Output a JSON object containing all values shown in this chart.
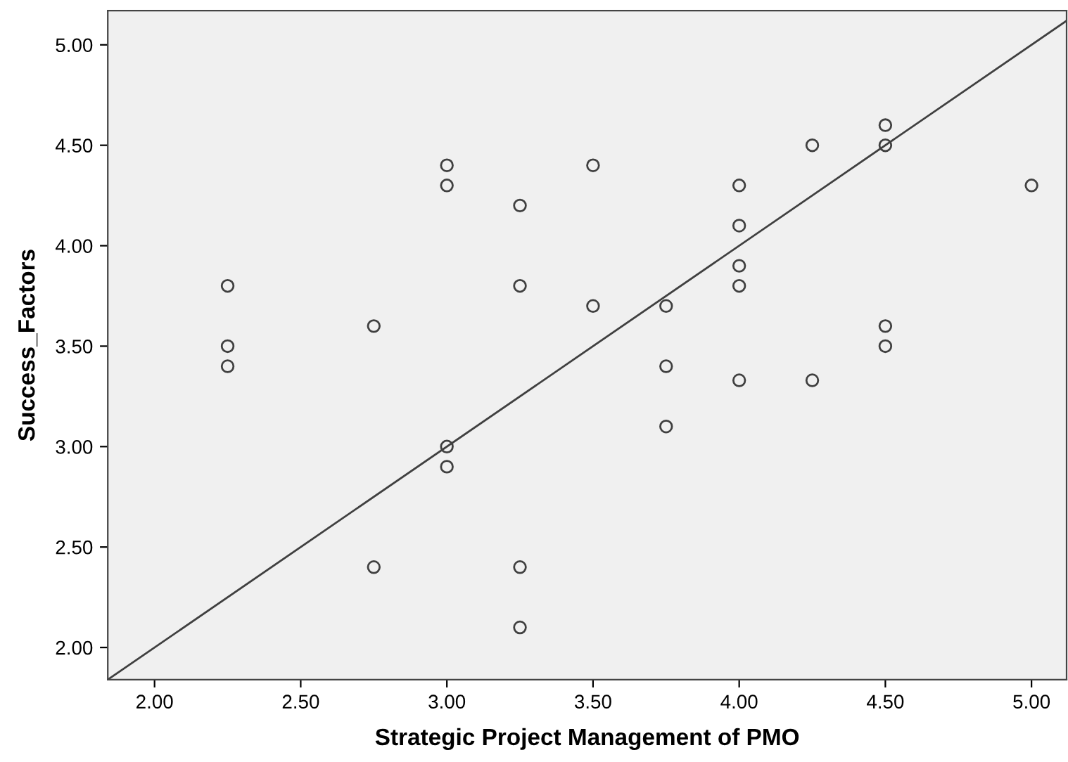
{
  "chart_data": {
    "type": "scatter",
    "xlabel": "Strategic Project Management of PMO",
    "ylabel": "Success_Factors",
    "series": [
      {
        "color": "#404040",
        "marker": "circle",
        "x": [
          2.25,
          2.25,
          2.25,
          2.75,
          2.75,
          3.0,
          3.0,
          3.0,
          3.0,
          3.25,
          3.25,
          3.25,
          3.25,
          3.5,
          3.5,
          3.75,
          3.75,
          3.75,
          4.0,
          4.0,
          4.0,
          4.0,
          4.0,
          4.25,
          4.25,
          4.5,
          4.5,
          4.5,
          4.5,
          5.0
        ],
        "values": [
          3.8,
          3.5,
          3.4,
          3.6,
          2.4,
          4.4,
          4.3,
          3.0,
          2.9,
          4.2,
          3.8,
          2.4,
          2.1,
          4.4,
          3.7,
          3.7,
          3.4,
          3.1,
          4.3,
          4.1,
          3.9,
          3.8,
          3.33,
          4.5,
          3.33,
          4.6,
          4.5,
          3.6,
          3.5,
          4.3
        ]
      },
      {
        "type": "line",
        "color": "#404040",
        "x": [
          1.84,
          5.12
        ],
        "values": [
          1.84,
          5.12
        ]
      }
    ],
    "xlim": [
      1.84,
      5.12
    ],
    "ylim": [
      1.84,
      5.17
    ],
    "xticks": [
      {
        "value": 2,
        "label": "2.00"
      },
      {
        "value": 2.5,
        "label": "2.50"
      },
      {
        "value": 3,
        "label": "3.00"
      },
      {
        "value": 3.5,
        "label": "3.50"
      },
      {
        "value": 4,
        "label": "4.00"
      },
      {
        "value": 4.5,
        "label": "4.50"
      },
      {
        "value": 5,
        "label": "5.00"
      }
    ],
    "yticks": [
      {
        "value": 2,
        "label": "2.00"
      },
      {
        "value": 2.5,
        "label": "2.50"
      },
      {
        "value": 3,
        "label": "3.00"
      },
      {
        "value": 3.5,
        "label": "3.50"
      },
      {
        "value": 4,
        "label": "4.00"
      },
      {
        "value": 4.5,
        "label": "4.50"
      },
      {
        "value": 5,
        "label": "5.00"
      }
    ],
    "grid": false
  }
}
